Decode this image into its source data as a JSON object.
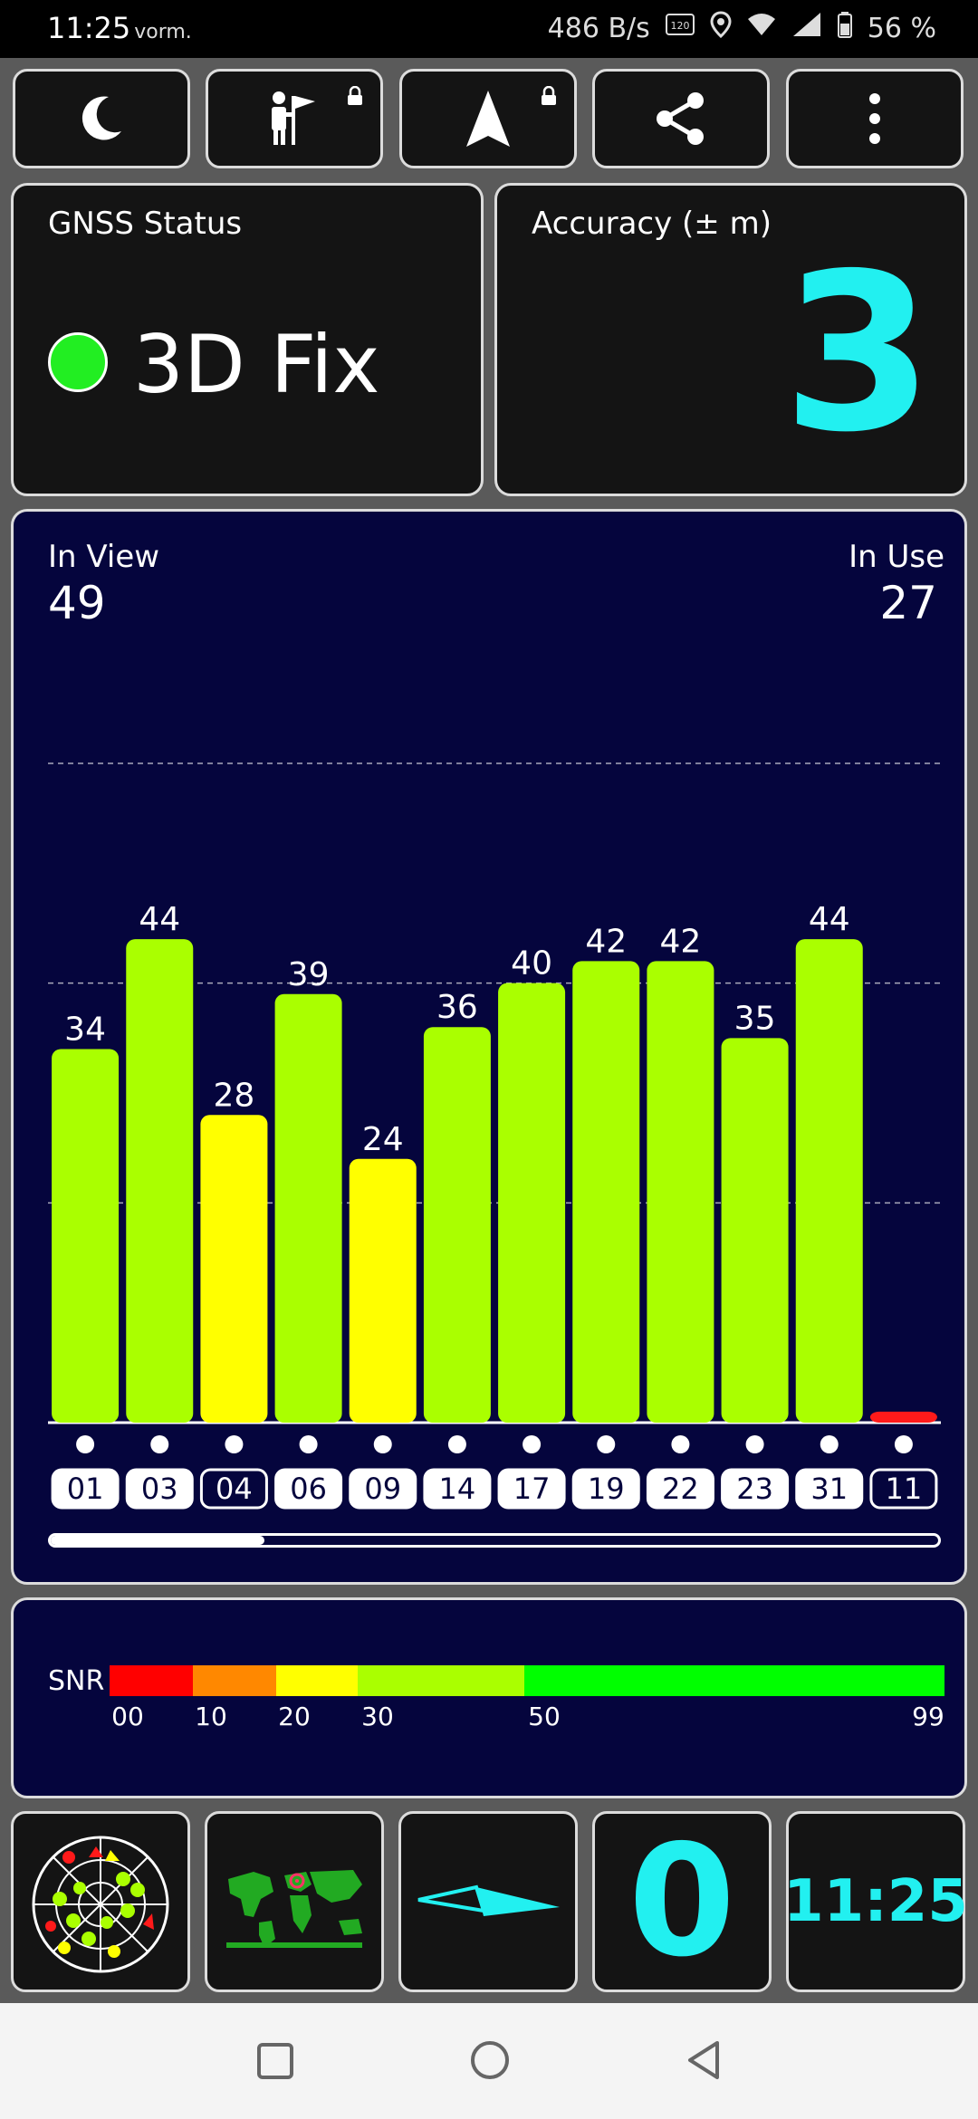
{
  "status_bar": {
    "time": "11:25",
    "time_suffix": "vorm.",
    "net_speed": "486 B/s",
    "battery": "56 %"
  },
  "toolbar": {
    "buttons": [
      {
        "icon": "moon-icon",
        "label": "night-mode"
      },
      {
        "icon": "person-flag-icon",
        "label": "locked-mode"
      },
      {
        "icon": "navigation-arrow-icon",
        "label": "locked-navigation"
      },
      {
        "icon": "share-icon",
        "label": "share"
      },
      {
        "icon": "more-vertical-icon",
        "label": "more"
      }
    ]
  },
  "gnss": {
    "title": "GNSS Status",
    "value": "3D Fix",
    "status_color": "#22ee22"
  },
  "accuracy": {
    "title": "Accuracy (± m)",
    "value": "3",
    "color": "#22f0f0"
  },
  "satellites": {
    "in_view_label": "In View",
    "in_view": "49",
    "in_use_label": "In Use",
    "in_use": "27"
  },
  "chart_data": {
    "type": "bar",
    "categories": [
      "01",
      "03",
      "04",
      "06",
      "09",
      "14",
      "17",
      "19",
      "22",
      "23",
      "31",
      "11"
    ],
    "values": [
      34,
      44,
      28,
      39,
      24,
      36,
      40,
      42,
      42,
      35,
      44,
      1
    ],
    "labels": [
      "34",
      "44",
      "28",
      "39",
      "24",
      "36",
      "40",
      "42",
      "42",
      "35",
      "44",
      ""
    ],
    "ylim": [
      0,
      60
    ],
    "grid": true,
    "outlined_categories": [
      "04",
      "11"
    ],
    "colors": {
      "strong": "#aaff00",
      "medium": "#ffff00",
      "weak": "#ff1a1a"
    }
  },
  "snr_legend": {
    "label": "SNR",
    "ticks": [
      "00",
      "10",
      "20",
      "30",
      "50",
      "99"
    ],
    "colors": [
      "#ff0000",
      "#ff8800",
      "#ffff00",
      "#aaff00",
      "#00ff00"
    ]
  },
  "bottom": {
    "icons": [
      "radar-sky-icon",
      "world-map-icon",
      "compass-arrow-icon"
    ],
    "speed": "0",
    "clock": "11:25",
    "accent": "#22f0f0"
  }
}
